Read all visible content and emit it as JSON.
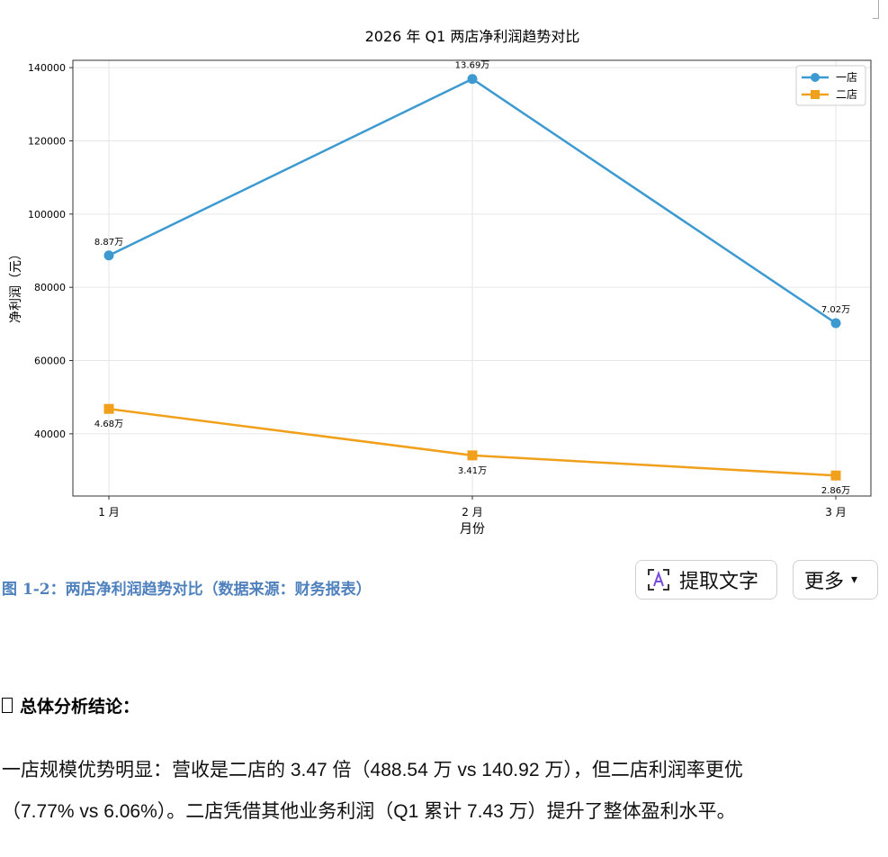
{
  "chart_data": {
    "type": "line",
    "title": "2026 年 Q1 两店净利润趋势对比",
    "xlabel": "月份",
    "ylabel": "净利润（元）",
    "categories": [
      "1 月",
      "2 月",
      "3 月"
    ],
    "ylim": [
      23000,
      142000
    ],
    "yticks": [
      40000,
      60000,
      80000,
      100000,
      120000,
      140000
    ],
    "grid": true,
    "legend_position": "top-right",
    "series": [
      {
        "name": "一店",
        "values": [
          88700,
          136900,
          70200
        ],
        "labels": [
          "8.87万",
          "13.69万",
          "7.02万"
        ],
        "color": "#3d9ad1",
        "marker": "circle"
      },
      {
        "name": "二店",
        "values": [
          46800,
          34100,
          28600
        ],
        "labels": [
          "4.68万",
          "3.41万",
          "2.86万"
        ],
        "color": "#f1a01b",
        "marker": "square"
      }
    ]
  },
  "caption": "图 1-2：两店净利润趋势对比（数据来源：财务报表）",
  "toolbar": {
    "extract_label": "提取文字",
    "more_label": "更多",
    "extract_icon": "text-scan-icon",
    "more_icon": "chevron-down-icon"
  },
  "conclusion": {
    "heading": "总体分析结论：",
    "line1": "一店规模优势明显：营收是二店的 3.47 倍（488.54 万 vs 140.92 万），但二店利润率更优",
    "line2": "（7.77% vs 6.06%）。二店凭借其他业务利润（Q1 累计 7.43 万）提升了整体盈利水平。"
  }
}
